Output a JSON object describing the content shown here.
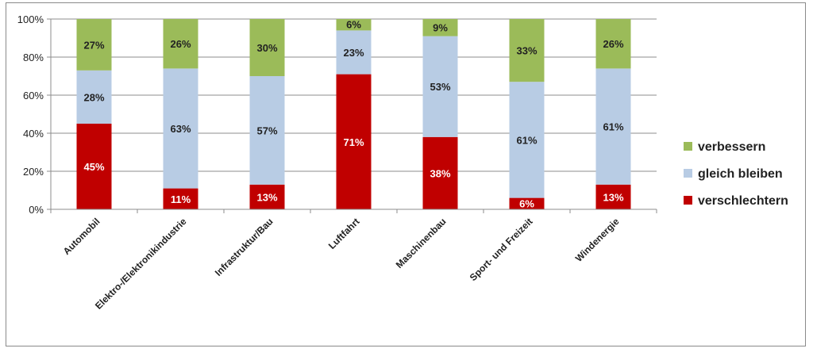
{
  "chart_data": {
    "type": "bar",
    "stacked": true,
    "categories": [
      "Automobil",
      "Elektro-/Elektronikindustrie",
      "Infrastruktur/Bau",
      "Luftfahrt",
      "Maschinenbau",
      "Sport- und Freizeit",
      "Windenergie"
    ],
    "series": [
      {
        "name": "verschlechtern",
        "values": [
          45,
          11,
          13,
          71,
          38,
          6,
          13
        ],
        "color": "#c00000",
        "label_color": "#ffffff"
      },
      {
        "name": "gleich bleiben",
        "values": [
          28,
          63,
          57,
          23,
          53,
          61,
          61
        ],
        "color": "#b8cce4",
        "label_color": "#222222"
      },
      {
        "name": "verbessern",
        "values": [
          27,
          26,
          30,
          6,
          9,
          33,
          26
        ],
        "color": "#9bbb59",
        "label_color": "#222222"
      }
    ],
    "data_labels": [
      [
        "45%",
        "11%",
        "13%",
        "71%",
        "38%",
        "6%",
        "13%"
      ],
      [
        "28%",
        "63%",
        "57%",
        "23%",
        "53%",
        "61%",
        "61%"
      ],
      [
        "27%",
        "26%",
        "30%",
        "6%",
        "9%",
        "33%",
        "26%"
      ]
    ],
    "ylim": [
      0,
      100
    ],
    "yticks": [
      0,
      20,
      40,
      60,
      80,
      100
    ],
    "ytick_labels": [
      "0%",
      "20%",
      "40%",
      "60%",
      "80%",
      "100%"
    ],
    "title": "",
    "xlabel": "",
    "ylabel": "",
    "grid": true,
    "legend": {
      "position": "right",
      "order": [
        "verbessern",
        "gleich bleiben",
        "verschlechtern"
      ]
    }
  }
}
